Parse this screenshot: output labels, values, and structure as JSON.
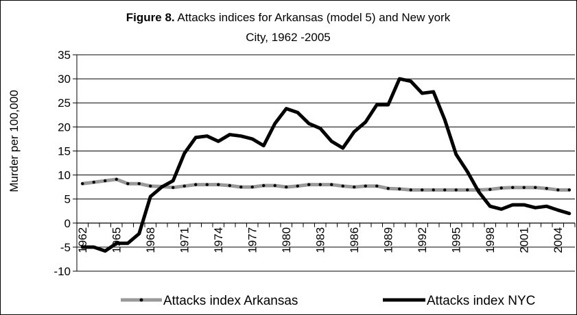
{
  "chart_data": {
    "type": "line",
    "title_bold": "Figure 8.",
    "title_line1": "  Attacks indices for Arkansas (model 5) and New york",
    "title_line2": "City, 1962 -2005",
    "xlabel": "",
    "ylabel": "Murder per 100,000",
    "ylim": [
      -10,
      35
    ],
    "yticks": [
      35,
      30,
      25,
      20,
      15,
      10,
      5,
      0,
      -5,
      -10
    ],
    "x": [
      1962,
      1963,
      1964,
      1965,
      1966,
      1967,
      1968,
      1969,
      1970,
      1971,
      1972,
      1973,
      1974,
      1975,
      1976,
      1977,
      1978,
      1979,
      1980,
      1981,
      1982,
      1983,
      1984,
      1985,
      1986,
      1987,
      1988,
      1989,
      1990,
      1991,
      1992,
      1993,
      1994,
      1995,
      1996,
      1997,
      1998,
      1999,
      2000,
      2001,
      2002,
      2003,
      2004,
      2005
    ],
    "xtick_labels": [
      "1962",
      "1965",
      "1968",
      "1971",
      "1974",
      "1977",
      "1980",
      "1983",
      "1986",
      "1989",
      "1992",
      "1995",
      "1998",
      "2001",
      "2004"
    ],
    "grid": "horizontal",
    "legend_position": "bottom",
    "series": [
      {
        "name": "Attacks index Arkansas",
        "color": "#999999",
        "marker": "dot",
        "values": [
          8.2,
          8.5,
          8.8,
          9.1,
          8.2,
          8.2,
          7.7,
          7.6,
          7.4,
          7.7,
          8.0,
          8.0,
          8.0,
          7.8,
          7.5,
          7.5,
          7.8,
          7.8,
          7.5,
          7.7,
          8.0,
          8.0,
          8.0,
          7.7,
          7.5,
          7.7,
          7.7,
          7.2,
          7.1,
          6.9,
          6.9,
          6.9,
          6.9,
          6.9,
          6.9,
          6.9,
          7.0,
          7.3,
          7.4,
          7.4,
          7.4,
          7.2,
          6.9,
          6.9
        ]
      },
      {
        "name": "Attacks index NYC",
        "color": "#000000",
        "marker": "none",
        "values": [
          -5.0,
          -5.0,
          -5.8,
          -4.2,
          -4.2,
          -2.2,
          5.5,
          7.5,
          8.8,
          14.5,
          17.8,
          18.1,
          17.0,
          18.4,
          18.1,
          17.5,
          16.1,
          20.7,
          23.8,
          23.0,
          20.7,
          19.7,
          17.0,
          15.6,
          19.0,
          21.0,
          24.6,
          24.6,
          30.0,
          29.5,
          27.0,
          27.3,
          21.5,
          14.3,
          10.7,
          6.5,
          3.5,
          2.9,
          3.8,
          3.8,
          3.2,
          3.5,
          2.7,
          2.0
        ]
      }
    ]
  }
}
